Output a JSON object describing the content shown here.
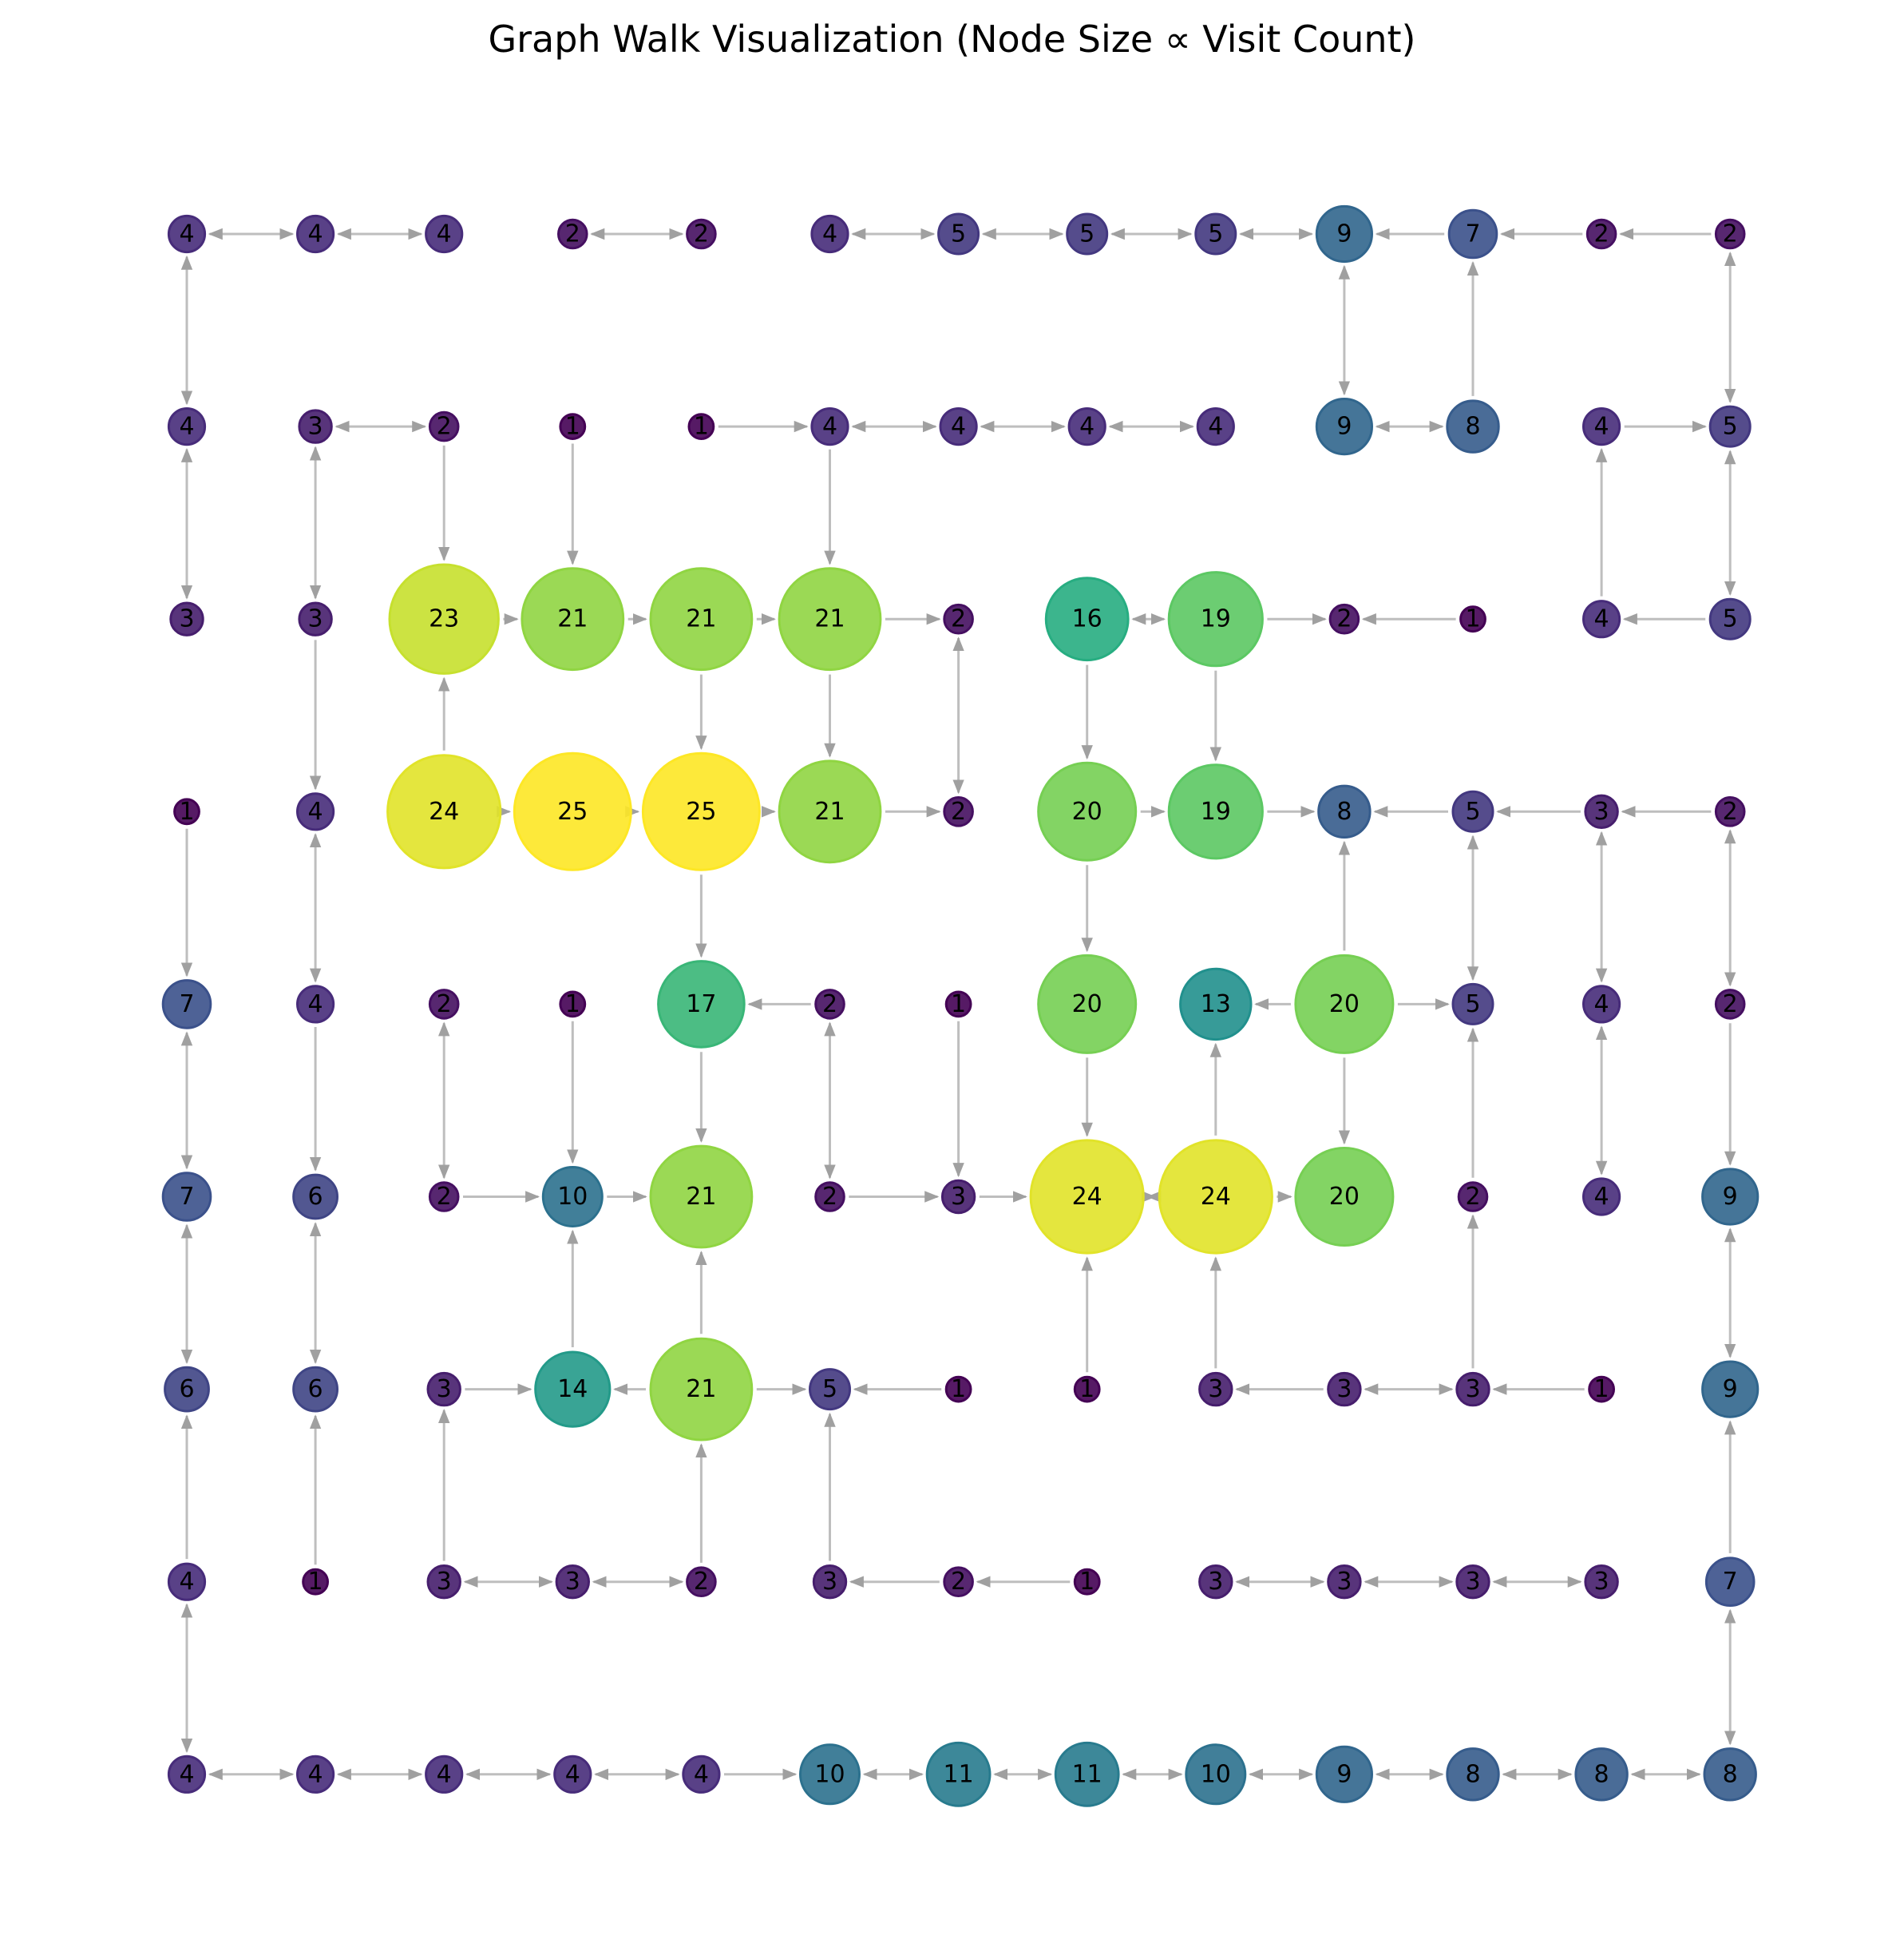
{
  "title": "Graph Walk Visualization (Node Size ∝ Visit Count)",
  "grid": {
    "rows": 9,
    "cols": 13,
    "counts": [
      [
        4,
        4,
        4,
        2,
        2,
        4,
        5,
        5,
        5,
        9,
        7,
        2,
        2
      ],
      [
        4,
        3,
        2,
        1,
        1,
        4,
        4,
        4,
        4,
        9,
        8,
        4,
        5
      ],
      [
        3,
        3,
        23,
        21,
        21,
        21,
        2,
        16,
        19,
        2,
        1,
        4,
        5
      ],
      [
        1,
        4,
        24,
        25,
        25,
        21,
        2,
        20,
        19,
        8,
        5,
        3,
        2
      ],
      [
        7,
        4,
        2,
        1,
        17,
        2,
        1,
        20,
        13,
        20,
        5,
        4,
        2
      ],
      [
        7,
        6,
        2,
        10,
        21,
        2,
        3,
        24,
        24,
        20,
        2,
        4,
        9
      ],
      [
        6,
        6,
        3,
        14,
        21,
        5,
        1,
        1,
        3,
        3,
        3,
        1,
        9
      ],
      [
        4,
        1,
        3,
        3,
        2,
        3,
        2,
        1,
        3,
        3,
        3,
        3,
        7
      ],
      [
        4,
        4,
        4,
        4,
        4,
        10,
        11,
        11,
        10,
        9,
        8,
        8,
        8
      ]
    ]
  },
  "edges": [
    [
      0,
      0,
      0,
      1,
      true
    ],
    [
      0,
      1,
      0,
      2,
      true
    ],
    [
      0,
      3,
      0,
      4,
      true
    ],
    [
      0,
      5,
      0,
      6,
      true
    ],
    [
      0,
      6,
      0,
      7,
      true
    ],
    [
      0,
      7,
      0,
      8,
      true
    ],
    [
      0,
      8,
      0,
      9,
      true
    ],
    [
      0,
      10,
      0,
      9,
      false
    ],
    [
      0,
      11,
      0,
      10,
      false
    ],
    [
      0,
      12,
      0,
      11,
      false
    ],
    [
      0,
      0,
      1,
      0,
      true
    ],
    [
      0,
      9,
      1,
      9,
      true
    ],
    [
      1,
      10,
      0,
      10,
      false
    ],
    [
      0,
      12,
      1,
      12,
      true
    ],
    [
      1,
      1,
      1,
      2,
      true
    ],
    [
      1,
      4,
      1,
      5,
      false
    ],
    [
      1,
      5,
      1,
      6,
      true
    ],
    [
      1,
      6,
      1,
      7,
      true
    ],
    [
      1,
      7,
      1,
      8,
      true
    ],
    [
      1,
      9,
      1,
      10,
      true
    ],
    [
      1,
      11,
      1,
      12,
      false
    ],
    [
      1,
      0,
      2,
      0,
      true
    ],
    [
      1,
      1,
      2,
      1,
      true
    ],
    [
      1,
      2,
      2,
      2,
      false
    ],
    [
      1,
      3,
      2,
      3,
      false
    ],
    [
      1,
      5,
      2,
      5,
      false
    ],
    [
      2,
      11,
      1,
      11,
      false
    ],
    [
      1,
      12,
      2,
      12,
      true
    ],
    [
      2,
      2,
      2,
      3,
      false
    ],
    [
      2,
      3,
      2,
      4,
      false
    ],
    [
      2,
      4,
      2,
      5,
      false
    ],
    [
      2,
      5,
      2,
      6,
      false
    ],
    [
      2,
      7,
      2,
      8,
      true
    ],
    [
      2,
      8,
      2,
      9,
      false
    ],
    [
      2,
      10,
      2,
      9,
      false
    ],
    [
      2,
      12,
      2,
      11,
      false
    ],
    [
      2,
      1,
      3,
      1,
      false
    ],
    [
      3,
      2,
      2,
      2,
      false
    ],
    [
      2,
      4,
      3,
      4,
      false
    ],
    [
      2,
      5,
      3,
      5,
      false
    ],
    [
      2,
      6,
      3,
      6,
      true
    ],
    [
      2,
      7,
      3,
      7,
      false
    ],
    [
      2,
      8,
      3,
      8,
      false
    ],
    [
      3,
      2,
      3,
      3,
      false
    ],
    [
      3,
      3,
      3,
      4,
      false
    ],
    [
      3,
      4,
      3,
      5,
      false
    ],
    [
      3,
      5,
      3,
      6,
      false
    ],
    [
      3,
      7,
      3,
      8,
      false
    ],
    [
      3,
      8,
      3,
      9,
      false
    ],
    [
      3,
      10,
      3,
      9,
      false
    ],
    [
      3,
      11,
      3,
      10,
      false
    ],
    [
      3,
      12,
      3,
      11,
      false
    ],
    [
      3,
      0,
      4,
      0,
      false
    ],
    [
      3,
      1,
      4,
      1,
      true
    ],
    [
      3,
      4,
      4,
      4,
      false
    ],
    [
      3,
      7,
      4,
      7,
      false
    ],
    [
      4,
      9,
      3,
      9,
      false
    ],
    [
      3,
      10,
      4,
      10,
      true
    ],
    [
      3,
      11,
      4,
      11,
      true
    ],
    [
      3,
      12,
      4,
      12,
      true
    ],
    [
      4,
      5,
      4,
      4,
      false
    ],
    [
      4,
      9,
      4,
      8,
      false
    ],
    [
      4,
      9,
      4,
      10,
      false
    ],
    [
      4,
      0,
      5,
      0,
      true
    ],
    [
      4,
      1,
      5,
      1,
      false
    ],
    [
      4,
      2,
      5,
      2,
      true
    ],
    [
      4,
      3,
      5,
      3,
      false
    ],
    [
      4,
      4,
      5,
      4,
      false
    ],
    [
      4,
      5,
      5,
      5,
      true
    ],
    [
      4,
      6,
      5,
      6,
      false
    ],
    [
      4,
      7,
      5,
      7,
      false
    ],
    [
      5,
      8,
      4,
      8,
      false
    ],
    [
      4,
      9,
      5,
      9,
      false
    ],
    [
      5,
      10,
      4,
      10,
      false
    ],
    [
      4,
      11,
      5,
      11,
      true
    ],
    [
      4,
      12,
      5,
      12,
      false
    ],
    [
      5,
      2,
      5,
      3,
      false
    ],
    [
      5,
      3,
      5,
      4,
      false
    ],
    [
      5,
      5,
      5,
      6,
      false
    ],
    [
      5,
      6,
      5,
      7,
      false
    ],
    [
      5,
      7,
      5,
      8,
      true
    ],
    [
      5,
      8,
      5,
      9,
      false
    ],
    [
      5,
      0,
      6,
      0,
      true
    ],
    [
      5,
      1,
      6,
      1,
      true
    ],
    [
      6,
      3,
      5,
      3,
      false
    ],
    [
      6,
      4,
      5,
      4,
      false
    ],
    [
      6,
      7,
      5,
      7,
      false
    ],
    [
      6,
      8,
      5,
      8,
      false
    ],
    [
      6,
      10,
      5,
      10,
      false
    ],
    [
      5,
      12,
      6,
      12,
      true
    ],
    [
      6,
      2,
      6,
      3,
      false
    ],
    [
      6,
      4,
      6,
      3,
      false
    ],
    [
      6,
      4,
      6,
      5,
      false
    ],
    [
      6,
      6,
      6,
      5,
      false
    ],
    [
      6,
      9,
      6,
      8,
      false
    ],
    [
      6,
      9,
      6,
      10,
      true
    ],
    [
      6,
      11,
      6,
      10,
      false
    ],
    [
      7,
      0,
      6,
      0,
      false
    ],
    [
      7,
      1,
      6,
      1,
      false
    ],
    [
      7,
      2,
      6,
      2,
      false
    ],
    [
      7,
      4,
      6,
      4,
      false
    ],
    [
      7,
      5,
      6,
      5,
      false
    ],
    [
      7,
      12,
      6,
      12,
      false
    ],
    [
      7,
      2,
      7,
      3,
      true
    ],
    [
      7,
      3,
      7,
      4,
      true
    ],
    [
      7,
      6,
      7,
      5,
      false
    ],
    [
      7,
      7,
      7,
      6,
      false
    ],
    [
      7,
      8,
      7,
      9,
      true
    ],
    [
      7,
      9,
      7,
      10,
      true
    ],
    [
      7,
      10,
      7,
      11,
      true
    ],
    [
      7,
      0,
      8,
      0,
      true
    ],
    [
      7,
      12,
      8,
      12,
      true
    ],
    [
      8,
      0,
      8,
      1,
      true
    ],
    [
      8,
      1,
      8,
      2,
      true
    ],
    [
      8,
      2,
      8,
      3,
      true
    ],
    [
      8,
      3,
      8,
      4,
      true
    ],
    [
      8,
      4,
      8,
      5,
      false
    ],
    [
      8,
      5,
      8,
      6,
      true
    ],
    [
      8,
      6,
      8,
      7,
      true
    ],
    [
      8,
      7,
      8,
      8,
      true
    ],
    [
      8,
      8,
      8,
      9,
      true
    ],
    [
      8,
      9,
      8,
      10,
      true
    ],
    [
      8,
      10,
      8,
      11,
      true
    ],
    [
      8,
      11,
      8,
      12,
      true
    ]
  ],
  "colors": {
    "colormap": "viridis",
    "edge": "#a8a8a8",
    "label": "#000000"
  }
}
